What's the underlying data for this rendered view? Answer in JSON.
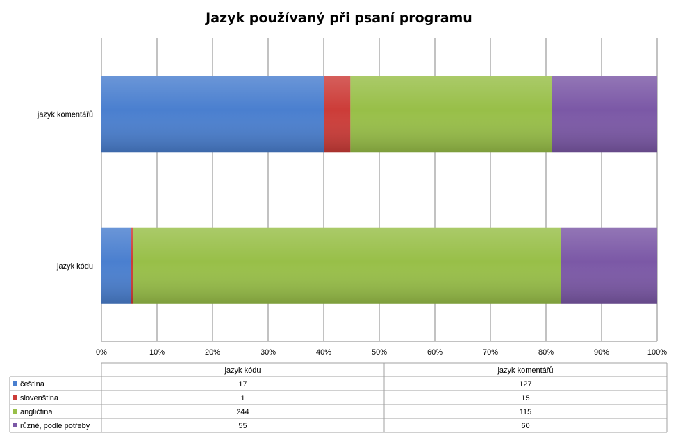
{
  "chart_data": {
    "type": "bar",
    "orientation": "horizontal",
    "stacked": "percent",
    "title": "Jazyk používaný při psaní programu",
    "categories": [
      "jazyk komentářů",
      "jazyk kódu"
    ],
    "series": [
      {
        "name": "čeština",
        "color": "#4a7fcf",
        "values": [
          127,
          17
        ]
      },
      {
        "name": "slovenština",
        "color": "#cc3c38",
        "values": [
          15,
          1
        ]
      },
      {
        "name": "angličtina",
        "color": "#98bf48",
        "values": [
          115,
          244
        ]
      },
      {
        "name": "různé, podle potřeby",
        "color": "#7b58a6",
        "values": [
          60,
          55
        ]
      }
    ],
    "xlim": [
      0,
      100
    ],
    "x_ticks": [
      "0%",
      "10%",
      "20%",
      "30%",
      "40%",
      "50%",
      "60%",
      "70%",
      "80%",
      "90%",
      "100%"
    ],
    "grid": true,
    "legend": "data-table-below",
    "data_table": {
      "columns": [
        "jazyk kódu",
        "jazyk komentářů"
      ],
      "rows": [
        {
          "name": "čeština",
          "values": [
            17,
            127
          ]
        },
        {
          "name": "slovenština",
          "values": [
            1,
            15
          ]
        },
        {
          "name": "angličtina",
          "values": [
            244,
            115
          ]
        },
        {
          "name": "různé, podle potřeby",
          "values": [
            55,
            60
          ]
        }
      ]
    }
  }
}
